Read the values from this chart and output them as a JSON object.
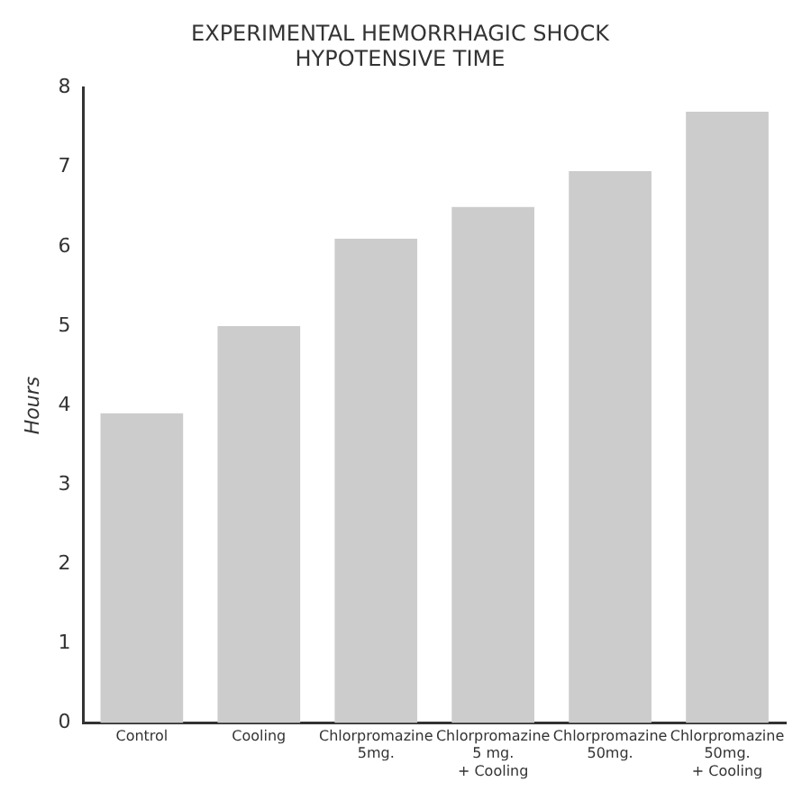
{
  "chart_data": {
    "type": "bar",
    "title": [
      "EXPERIMENTAL HEMORRHAGIC SHOCK",
      "HYPOTENSIVE TIME"
    ],
    "ylabel": "Hours",
    "categories": [
      "Control",
      "Cooling",
      "Chlorpromazine\n5mg.",
      "Chlorpromazine\n5 mg.\n+ Cooling",
      "Chlorpromazine\n50mg.",
      "Chlorpromazine\n50mg.\n+ Cooling"
    ],
    "values": [
      3.9,
      5.0,
      6.1,
      6.5,
      6.95,
      7.7
    ],
    "color": "#cccccc",
    "ylim": [
      0,
      8
    ],
    "yticks": [
      0,
      1,
      2,
      3,
      4,
      5,
      6,
      7,
      8
    ],
    "grid": false,
    "legend": false
  }
}
